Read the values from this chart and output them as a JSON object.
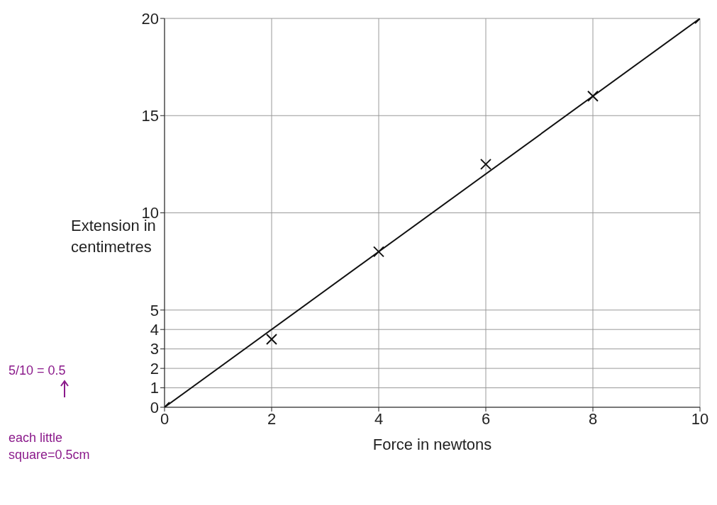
{
  "chart_data": {
    "type": "scatter",
    "xlabel": "Force in newtons",
    "ylabel": "Extension in centimetres",
    "xlim": [
      0,
      10
    ],
    "ylim": [
      0,
      20
    ],
    "xticks": [
      0,
      2,
      4,
      6,
      8,
      10
    ],
    "yticks": [
      0,
      1,
      2,
      3,
      4,
      5,
      10,
      15,
      20
    ],
    "grid": true,
    "marker": "cross",
    "series": [
      {
        "color": "#111111",
        "x": [
          0,
          2,
          4,
          6,
          8,
          10
        ],
        "values": [
          0,
          3.5,
          8,
          12.5,
          16,
          20
        ]
      },
      {
        "type": "line",
        "color": "#111111",
        "x": [
          0,
          10
        ],
        "values": [
          0,
          20
        ],
        "marker": "none",
        "line_style": "solid"
      }
    ],
    "annotations": [
      "5/10 = 0.5",
      "each little square=0.5cm"
    ]
  }
}
